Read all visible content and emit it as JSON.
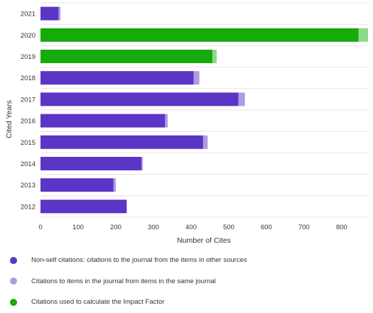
{
  "chart_data": {
    "type": "bar",
    "orientation": "horizontal",
    "stacked": true,
    "ylabel": "Cited Years",
    "xlabel": "Number of Cites",
    "categories": [
      "2021",
      "2020",
      "2019",
      "2018",
      "2017",
      "2016",
      "2015",
      "2014",
      "2013",
      "2012"
    ],
    "xlim": [
      0,
      870
    ],
    "xticks": [
      0,
      100,
      200,
      300,
      400,
      500,
      600,
      700,
      800
    ],
    "grid": true,
    "legend_position": "bottom",
    "series": [
      {
        "name": "Non-self citations: citations to the journal from the items in other sources",
        "color": "#5b35c5",
        "values": [
          48,
          0,
          0,
          407,
          526,
          331,
          432,
          268,
          194,
          229
        ]
      },
      {
        "name": "Citations to items in the journal from items in the same journal",
        "color": "#b09be5",
        "values": [
          5,
          0,
          0,
          15,
          17,
          7,
          12,
          4,
          6,
          0
        ]
      },
      {
        "name": "Citations used to calculate the Impact Factor",
        "color": "#16aa0c",
        "values": [
          0,
          845,
          457,
          0,
          0,
          0,
          0,
          0,
          0,
          0
        ]
      },
      {
        "name": "",
        "color": "#8fd88a",
        "values": [
          0,
          25,
          11,
          0,
          0,
          0,
          0,
          0,
          0,
          0
        ]
      }
    ]
  },
  "legend": [
    {
      "label": "Non-self citations: citations to the journal from the items in other sources",
      "color": "#5b35c5",
      "icon": "circle-icon"
    },
    {
      "label": "Citations to items in the journal from items in the same journal",
      "color": "#b09be5",
      "icon": "circle-icon"
    },
    {
      "label": "Citations used to calculate the Impact Factor",
      "color": "#16aa0c",
      "icon": "circle-icon"
    }
  ]
}
